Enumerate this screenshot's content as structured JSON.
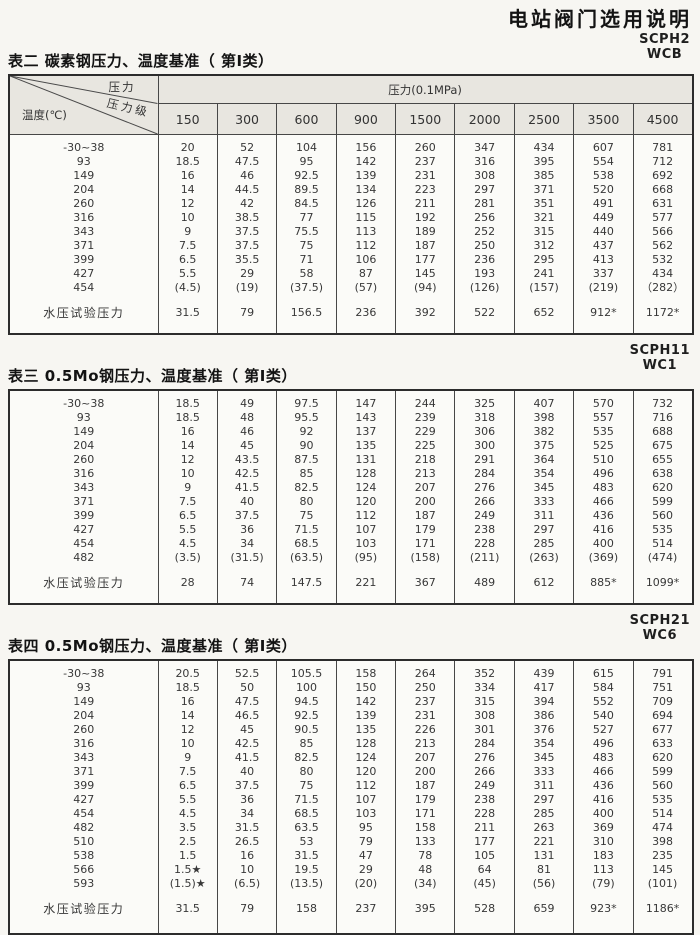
{
  "page": {
    "title": "电站阀门选用说明"
  },
  "colors": {
    "header_band": "#e8e6e0",
    "border": "#474747",
    "paper": "#f7f6f2"
  },
  "tables": [
    {
      "title": "表二 碳素钢压力、温度基准（ 第Ⅰ类）",
      "code1": "SCPH2",
      "code2": "WCB",
      "header": {
        "diag_top": "压力",
        "diag_mid": "压力级",
        "diag_bottom": "温度(℃)",
        "span_label": "压力(0.1MPa)",
        "columns": [
          "150",
          "300",
          "600",
          "900",
          "1500",
          "2000",
          "2500",
          "3500",
          "4500"
        ]
      },
      "rows": [
        {
          "temp": "-30~38",
          "values": [
            "20",
            "52",
            "104",
            "156",
            "260",
            "347",
            "434",
            "607",
            "781"
          ]
        },
        {
          "temp": "93",
          "values": [
            "18.5",
            "47.5",
            "95",
            "142",
            "237",
            "316",
            "395",
            "554",
            "712"
          ]
        },
        {
          "temp": "149",
          "values": [
            "16",
            "46",
            "92.5",
            "139",
            "231",
            "308",
            "385",
            "538",
            "692"
          ]
        },
        {
          "temp": "204",
          "values": [
            "14",
            "44.5",
            "89.5",
            "134",
            "223",
            "297",
            "371",
            "520",
            "668"
          ]
        },
        {
          "temp": "260",
          "values": [
            "12",
            "42",
            "84.5",
            "126",
            "211",
            "281",
            "351",
            "491",
            "631"
          ]
        },
        {
          "temp": "316",
          "values": [
            "10",
            "38.5",
            "77",
            "115",
            "192",
            "256",
            "321",
            "449",
            "577"
          ]
        },
        {
          "temp": "343",
          "values": [
            "9",
            "37.5",
            "75.5",
            "113",
            "189",
            "252",
            "315",
            "440",
            "566"
          ]
        },
        {
          "temp": "371",
          "values": [
            "7.5",
            "37.5",
            "75",
            "112",
            "187",
            "250",
            "312",
            "437",
            "562"
          ]
        },
        {
          "temp": "399",
          "values": [
            "6.5",
            "35.5",
            "71",
            "106",
            "177",
            "236",
            "295",
            "413",
            "532"
          ]
        },
        {
          "temp": "427",
          "values": [
            "5.5",
            "29",
            "58",
            "87",
            "145",
            "193",
            "241",
            "337",
            "434"
          ]
        },
        {
          "temp": "454",
          "values": [
            "(4.5)",
            "(19)",
            "(37.5)",
            "(57)",
            "(94)",
            "(126)",
            "(157)",
            "(219)",
            "（282）"
          ]
        }
      ],
      "footer": {
        "label": "水压试验压力",
        "values": [
          "31.5",
          "79",
          "156.5",
          "236",
          "392",
          "522",
          "652",
          "912*",
          "1172*"
        ]
      }
    },
    {
      "title": "表三 0.5Mo钢压力、温度基准（ 第Ⅰ类）",
      "code1": "SCPH11",
      "code2": "WC1",
      "rows": [
        {
          "temp": "-30~38",
          "values": [
            "18.5",
            "49",
            "97.5",
            "147",
            "244",
            "325",
            "407",
            "570",
            "732"
          ]
        },
        {
          "temp": "93",
          "values": [
            "18.5",
            "48",
            "95.5",
            "143",
            "239",
            "318",
            "398",
            "557",
            "716"
          ]
        },
        {
          "temp": "149",
          "values": [
            "16",
            "46",
            "92",
            "137",
            "229",
            "306",
            "382",
            "535",
            "688"
          ]
        },
        {
          "temp": "204",
          "values": [
            "14",
            "45",
            "90",
            "135",
            "225",
            "300",
            "375",
            "525",
            "675"
          ]
        },
        {
          "temp": "260",
          "values": [
            "12",
            "43.5",
            "87.5",
            "131",
            "218",
            "291",
            "364",
            "510",
            "655"
          ]
        },
        {
          "temp": "316",
          "values": [
            "10",
            "42.5",
            "85",
            "128",
            "213",
            "284",
            "354",
            "496",
            "638"
          ]
        },
        {
          "temp": "343",
          "values": [
            "9",
            "41.5",
            "82.5",
            "124",
            "207",
            "276",
            "345",
            "483",
            "620"
          ]
        },
        {
          "temp": "371",
          "values": [
            "7.5",
            "40",
            "80",
            "120",
            "200",
            "266",
            "333",
            "466",
            "599"
          ]
        },
        {
          "temp": "399",
          "values": [
            "6.5",
            "37.5",
            "75",
            "112",
            "187",
            "249",
            "311",
            "436",
            "560"
          ]
        },
        {
          "temp": "427",
          "values": [
            "5.5",
            "36",
            "71.5",
            "107",
            "179",
            "238",
            "297",
            "416",
            "535"
          ]
        },
        {
          "temp": "454",
          "values": [
            "4.5",
            "34",
            "68.5",
            "103",
            "171",
            "228",
            "285",
            "400",
            "514"
          ]
        },
        {
          "temp": "482",
          "values": [
            "(3.5)",
            "(31.5)",
            "(63.5)",
            "(95)",
            "(158)",
            "(211)",
            "(263)",
            "(369)",
            "(474)"
          ]
        }
      ],
      "footer": {
        "label": "水压试验压力",
        "values": [
          "28",
          "74",
          "147.5",
          "221",
          "367",
          "489",
          "612",
          "885*",
          "1099*"
        ]
      }
    },
    {
      "title": "表四 0.5Mo钢压力、温度基准（ 第Ⅰ类）",
      "code1": "SCPH21",
      "code2": "WC6",
      "rows": [
        {
          "temp": "-30~38",
          "values": [
            "20.5",
            "52.5",
            "105.5",
            "158",
            "264",
            "352",
            "439",
            "615",
            "791"
          ]
        },
        {
          "temp": "93",
          "values": [
            "18.5",
            "50",
            "100",
            "150",
            "250",
            "334",
            "417",
            "584",
            "751"
          ]
        },
        {
          "temp": "149",
          "values": [
            "16",
            "47.5",
            "94.5",
            "142",
            "237",
            "315",
            "394",
            "552",
            "709"
          ]
        },
        {
          "temp": "204",
          "values": [
            "14",
            "46.5",
            "92.5",
            "139",
            "231",
            "308",
            "386",
            "540",
            "694"
          ]
        },
        {
          "temp": "260",
          "values": [
            "12",
            "45",
            "90.5",
            "135",
            "226",
            "301",
            "376",
            "527",
            "677"
          ]
        },
        {
          "temp": "316",
          "values": [
            "10",
            "42.5",
            "85",
            "128",
            "213",
            "284",
            "354",
            "496",
            "633"
          ]
        },
        {
          "temp": "343",
          "values": [
            "9",
            "41.5",
            "82.5",
            "124",
            "207",
            "276",
            "345",
            "483",
            "620"
          ]
        },
        {
          "temp": "371",
          "values": [
            "7.5",
            "40",
            "80",
            "120",
            "200",
            "266",
            "333",
            "466",
            "599"
          ]
        },
        {
          "temp": "399",
          "values": [
            "6.5",
            "37.5",
            "75",
            "112",
            "187",
            "249",
            "311",
            "436",
            "560"
          ]
        },
        {
          "temp": "427",
          "values": [
            "5.5",
            "36",
            "71.5",
            "107",
            "179",
            "238",
            "297",
            "416",
            "535"
          ]
        },
        {
          "temp": "454",
          "values": [
            "4.5",
            "34",
            "68.5",
            "103",
            "171",
            "228",
            "285",
            "400",
            "514"
          ]
        },
        {
          "temp": "482",
          "values": [
            "3.5",
            "31.5",
            "63.5",
            "95",
            "158",
            "211",
            "263",
            "369",
            "474"
          ]
        },
        {
          "temp": "510",
          "values": [
            "2.5",
            "26.5",
            "53",
            "79",
            "133",
            "177",
            "221",
            "310",
            "398"
          ]
        },
        {
          "temp": "538",
          "values": [
            "1.5",
            "16",
            "31.5",
            "47",
            "78",
            "105",
            "131",
            "183",
            "235"
          ]
        },
        {
          "temp": "566",
          "values": [
            "1.5★",
            "10",
            "19.5",
            "29",
            "48",
            "64",
            "81",
            "113",
            "145"
          ]
        },
        {
          "temp": "593",
          "values": [
            "(1.5)★",
            "(6.5)",
            "(13.5)",
            "(20)",
            "(34)",
            "(45)",
            "(56)",
            "(79)",
            "(101)"
          ]
        }
      ],
      "footer": {
        "label": "水压试验压力",
        "values": [
          "31.5",
          "79",
          "158",
          "237",
          "395",
          "528",
          "659",
          "923*",
          "1186*"
        ]
      }
    }
  ]
}
